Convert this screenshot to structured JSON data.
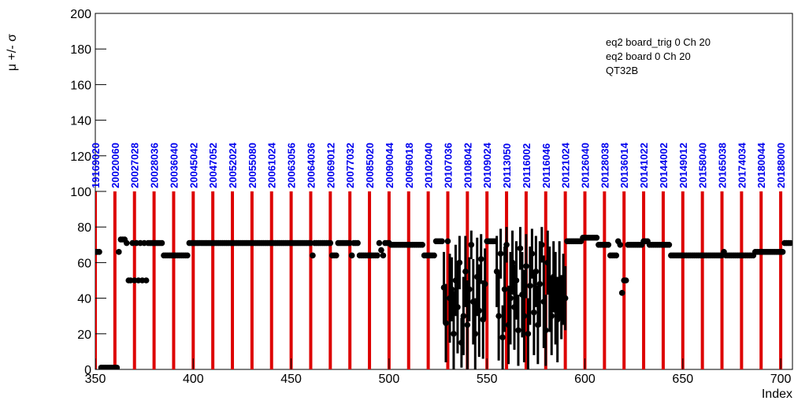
{
  "chart_data": {
    "type": "scatter",
    "ylabel": "μ +/- σ",
    "xlabel": "Index",
    "legend_lines": [
      "eq2 board_trig 0 Ch 20",
      "eq2 board 0 Ch 20",
      "QT32B"
    ],
    "xlim": [
      350,
      706
    ],
    "ylim": [
      0,
      200
    ],
    "xticks": [
      350,
      400,
      450,
      500,
      550,
      600,
      650,
      700
    ],
    "yticks": [
      0,
      20,
      40,
      60,
      80,
      100,
      120,
      140,
      160,
      180,
      200
    ],
    "markers": {
      "color": "#dd0000",
      "top": 100,
      "x": [
        350,
        360,
        370,
        380,
        390,
        400,
        410,
        420,
        430,
        440,
        450,
        460,
        470,
        480,
        490,
        500,
        510,
        520,
        530,
        540,
        550,
        560,
        570,
        580,
        590,
        600,
        610,
        620,
        630,
        640,
        650,
        660,
        670,
        680,
        690,
        700
      ],
      "labels": [
        "19169020",
        "20020060",
        "20027028",
        "20028036",
        "20036040",
        "20045042",
        "20047052",
        "20052024",
        "20055080",
        "20061024",
        "20063056",
        "20064036",
        "20069012",
        "20077032",
        "20085020",
        "20090044",
        "20096018",
        "20102040",
        "20107036",
        "20108042",
        "20109024",
        "20113050",
        "20116002",
        "20116046",
        "20121024",
        "20126040",
        "20128038",
        "20136014",
        "20141022",
        "20144002",
        "20149012",
        "20158040",
        "20165038",
        "20174034",
        "20180044",
        "20188000"
      ]
    },
    "series": [
      {
        "color": "#000000",
        "x": [
          350,
          351,
          352,
          353,
          354,
          355,
          356,
          357,
          358,
          359,
          360,
          361,
          362,
          363,
          364,
          365,
          366,
          367,
          368,
          369,
          370,
          371,
          372,
          373,
          374,
          375,
          376,
          377,
          378,
          379,
          380,
          381,
          382,
          383,
          384,
          385,
          386,
          387,
          388,
          389,
          390,
          391,
          392,
          393,
          394,
          395,
          396,
          397,
          398,
          399,
          400,
          401,
          402,
          403,
          404,
          405,
          406,
          407,
          408,
          409,
          410,
          411,
          412,
          413,
          414,
          415,
          416,
          417,
          418,
          419,
          420,
          421,
          422,
          423,
          424,
          425,
          426,
          427,
          428,
          429,
          430,
          431,
          432,
          433,
          434,
          435,
          436,
          437,
          438,
          439,
          440,
          441,
          442,
          443,
          444,
          445,
          446,
          447,
          448,
          449,
          450,
          451,
          452,
          453,
          454,
          455,
          456,
          457,
          458,
          459,
          460,
          461,
          462,
          463,
          464,
          465,
          466,
          467,
          468,
          469,
          470,
          471,
          472,
          473,
          474,
          475,
          476,
          477,
          478,
          479,
          480,
          481,
          482,
          483,
          484,
          485,
          486,
          487,
          488,
          489,
          490,
          491,
          492,
          493,
          494,
          495,
          496,
          497,
          498,
          499,
          500,
          501,
          502,
          503,
          504,
          505,
          506,
          507,
          508,
          509,
          510,
          511,
          512,
          513,
          514,
          515,
          516,
          517,
          518,
          519,
          520,
          521,
          522,
          523,
          524,
          525,
          526,
          527,
          591,
          592,
          593,
          594,
          595,
          596,
          597,
          598,
          599,
          600,
          601,
          602,
          603,
          604,
          605,
          606,
          607,
          608,
          609,
          610,
          611,
          612,
          613,
          614,
          615,
          616,
          617,
          618,
          619,
          620,
          621,
          622,
          623,
          624,
          625,
          626,
          627,
          628,
          629,
          630,
          631,
          632,
          633,
          634,
          635,
          636,
          637,
          638,
          639,
          640,
          641,
          642,
          643,
          644,
          645,
          646,
          647,
          648,
          649,
          650,
          651,
          652,
          653,
          654,
          655,
          656,
          657,
          658,
          659,
          660,
          661,
          662,
          663,
          664,
          665,
          666,
          667,
          668,
          669,
          670,
          671,
          672,
          673,
          674,
          675,
          676,
          677,
          678,
          679,
          680,
          681,
          682,
          683,
          684,
          685,
          686,
          687,
          688,
          689,
          690,
          691,
          692,
          693,
          694,
          695,
          696,
          697,
          698,
          699,
          700,
          701,
          702,
          703,
          704,
          705
        ],
        "values": [
          66,
          66,
          66,
          1,
          1,
          1,
          1,
          1,
          1,
          1,
          1,
          1,
          66,
          73,
          73,
          73,
          71,
          50,
          50,
          71,
          50,
          71,
          50,
          71,
          50,
          71,
          50,
          71,
          71,
          71,
          71,
          71,
          71,
          71,
          71,
          64,
          64,
          64,
          64,
          64,
          64,
          64,
          64,
          64,
          64,
          64,
          64,
          64,
          71,
          71,
          71,
          71,
          71,
          71,
          71,
          71,
          71,
          71,
          71,
          71,
          71,
          71,
          71,
          71,
          71,
          71,
          71,
          71,
          71,
          71,
          71,
          71,
          71,
          71,
          71,
          71,
          71,
          71,
          71,
          71,
          71,
          71,
          71,
          71,
          71,
          71,
          71,
          71,
          71,
          71,
          71,
          71,
          71,
          71,
          71,
          71,
          71,
          71,
          71,
          71,
          71,
          71,
          71,
          71,
          71,
          71,
          71,
          71,
          71,
          71,
          71,
          64,
          71,
          71,
          71,
          71,
          71,
          71,
          71,
          71,
          71,
          64,
          64,
          64,
          71,
          71,
          71,
          71,
          71,
          71,
          71,
          64,
          71,
          71,
          71,
          64,
          64,
          64,
          64,
          64,
          64,
          64,
          64,
          64,
          64,
          71,
          67,
          64,
          71,
          71,
          71,
          70,
          70,
          70,
          70,
          70,
          70,
          70,
          70,
          70,
          70,
          70,
          70,
          70,
          70,
          70,
          70,
          70,
          64,
          64,
          64,
          64,
          64,
          64,
          72,
          72,
          72,
          72,
          72,
          72,
          72,
          72,
          72,
          72,
          72,
          72,
          74,
          74,
          74,
          74,
          74,
          74,
          74,
          74,
          70,
          70,
          70,
          70,
          70,
          70,
          64,
          64,
          64,
          64,
          72,
          70,
          43,
          50,
          50,
          70,
          70,
          70,
          70,
          70,
          70,
          70,
          70,
          72,
          72,
          72,
          70,
          70,
          70,
          70,
          70,
          70,
          70,
          70,
          70,
          70,
          70,
          64,
          64,
          64,
          64,
          64,
          64,
          64,
          64,
          64,
          64,
          64,
          64,
          64,
          64,
          64,
          64,
          64,
          64,
          64,
          64,
          64,
          64,
          64,
          64,
          64,
          64,
          64,
          66,
          64,
          64,
          64,
          64,
          64,
          64,
          64,
          64,
          64,
          64,
          64,
          64,
          64,
          64,
          64,
          66,
          66,
          66,
          66,
          66,
          66,
          66,
          66,
          66,
          66,
          66,
          66,
          66,
          66,
          66,
          71,
          71,
          71,
          71
        ]
      },
      {
        "color": "#000000",
        "x": [
          528,
          529,
          530,
          531,
          532,
          533,
          534,
          535,
          536,
          537,
          538,
          539,
          540,
          541,
          542,
          543,
          544,
          545,
          546,
          547,
          548,
          549,
          550,
          551,
          552,
          553,
          554,
          555,
          556,
          557,
          558,
          559,
          560,
          561,
          562,
          563,
          564,
          565,
          566,
          567,
          568,
          569,
          570,
          571,
          572,
          573,
          574,
          575,
          576,
          577,
          578,
          579,
          580,
          581,
          582,
          583,
          584,
          585,
          586,
          587,
          588,
          589,
          590
        ],
        "values": [
          46,
          26,
          72,
          40,
          45,
          20,
          50,
          35,
          60,
          15,
          30,
          55,
          25,
          45,
          70,
          38,
          20,
          52,
          33,
          62,
          28,
          48,
          72,
          72,
          72,
          72,
          72,
          55,
          30,
          65,
          18,
          45,
          70,
          25,
          40,
          60,
          35,
          50,
          22,
          68,
          42,
          30,
          58,
          20,
          47,
          65,
          32,
          55,
          25,
          48,
          70,
          38,
          22,
          60,
          45,
          30,
          52,
          40,
          28,
          50,
          35,
          45,
          40
        ],
        "errors": [
          20,
          22,
          0,
          25,
          18,
          24,
          20,
          26,
          15,
          14,
          22,
          20,
          25,
          18,
          8,
          24,
          20,
          22,
          26,
          14,
          22,
          20,
          0,
          0,
          0,
          0,
          0,
          20,
          25,
          14,
          18,
          24,
          10,
          22,
          26,
          18,
          24,
          22,
          20,
          12,
          24,
          26,
          18,
          20,
          22,
          14,
          24,
          20,
          22,
          24,
          10,
          26,
          20,
          18,
          24,
          22,
          20,
          26,
          24,
          22,
          18,
          20,
          18
        ]
      }
    ]
  }
}
